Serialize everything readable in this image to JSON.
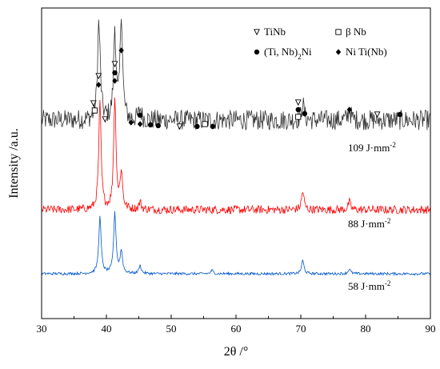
{
  "chart_data": {
    "type": "line",
    "xlabel": "2θ /°",
    "ylabel": "Intensity /a.u.",
    "xlim": [
      30,
      90
    ],
    "x_ticks": [
      30,
      40,
      50,
      60,
      70,
      80,
      90
    ],
    "y_ticks_shown": false,
    "grid": false,
    "legend": {
      "placement": "top-right",
      "entries": [
        {
          "marker": "open-triangle-down",
          "label": "TiNb"
        },
        {
          "marker": "open-square",
          "label": "β Nb"
        },
        {
          "marker": "filled-circle",
          "label": "(Ti, Nb)2Ni"
        },
        {
          "marker": "filled-diamond",
          "label": "Ni Ti(Nb)"
        }
      ]
    },
    "series": [
      {
        "name": "109 J·mm-2",
        "color": "#333333",
        "baseline": 0,
        "noise": 0.9,
        "peaks": [
          [
            38.8,
            7.5
          ],
          [
            39.0,
            2.0
          ],
          [
            41.3,
            8.0
          ],
          [
            42.3,
            9.5
          ],
          [
            45.2,
            1.0
          ],
          [
            70.3,
            1.5
          ],
          [
            77.5,
            1.0
          ]
        ]
      },
      {
        "name": "88 J·mm-2",
        "color": "#ff0000",
        "baseline": 0,
        "noise": 0.45,
        "peaks": [
          [
            39.0,
            11.5
          ],
          [
            41.3,
            12.0
          ],
          [
            42.3,
            4.0
          ],
          [
            45.2,
            0.8
          ],
          [
            70.3,
            2.0
          ],
          [
            77.5,
            0.8
          ]
        ]
      },
      {
        "name": "58 J·mm-2",
        "color": "#0055cc",
        "baseline": 0,
        "noise": 0.2,
        "peaks": [
          [
            39.0,
            8.5
          ],
          [
            41.3,
            9.0
          ],
          [
            42.3,
            3.3
          ],
          [
            45.2,
            1.2
          ],
          [
            56.3,
            0.5
          ],
          [
            70.3,
            2.0
          ],
          [
            77.5,
            0.7
          ]
        ]
      }
    ],
    "phase_markers": [
      {
        "symbol": "filled-diamond",
        "x": 38.8,
        "stack": 1
      },
      {
        "symbol": "open-triangle-down",
        "x": 38.8,
        "stack": 2
      },
      {
        "symbol": "open-square",
        "x": 38.2,
        "stack": 0
      },
      {
        "symbol": "open-triangle-down",
        "x": 38.0,
        "stack": 1
      },
      {
        "symbol": "filled-diamond",
        "x": 41.3,
        "stack": 2
      },
      {
        "symbol": "filled-circle",
        "x": 41.3,
        "stack": 3
      },
      {
        "symbol": "open-triangle-down",
        "x": 41.3,
        "stack": 4
      },
      {
        "symbol": "filled-diamond",
        "x": 42.3,
        "stack": 5
      },
      {
        "symbol": "open-triangle-down",
        "x": 39.8,
        "stack": -1
      },
      {
        "symbol": "filled-diamond",
        "x": 43.8,
        "stack": -1
      },
      {
        "symbol": "filled-circle",
        "x": 45.2,
        "stack": 0
      },
      {
        "symbol": "filled-diamond",
        "x": 45.2,
        "stack": -1
      },
      {
        "symbol": "filled-circle",
        "x": 46.8,
        "stack": -1
      },
      {
        "symbol": "filled-circle",
        "x": 48.0,
        "stack": -1
      },
      {
        "symbol": "open-triangle-down",
        "x": 51.3,
        "stack": -1
      },
      {
        "symbol": "filled-circle",
        "x": 54.0,
        "stack": -1
      },
      {
        "symbol": "open-square",
        "x": 55.2,
        "stack": -1
      },
      {
        "symbol": "filled-circle",
        "x": 56.4,
        "stack": -1
      },
      {
        "symbol": "open-triangle-down",
        "x": 69.6,
        "stack": 2
      },
      {
        "symbol": "filled-circle",
        "x": 69.6,
        "stack": 1
      },
      {
        "symbol": "open-square",
        "x": 69.6,
        "stack": 0
      },
      {
        "symbol": "filled-circle",
        "x": 70.6,
        "stack": 0
      },
      {
        "symbol": "filled-diamond",
        "x": 77.5,
        "stack": 1
      },
      {
        "symbol": "open-triangle-down",
        "x": 81.8,
        "stack": 0
      },
      {
        "symbol": "filled-circle",
        "x": 85.3,
        "stack": 0
      }
    ]
  }
}
